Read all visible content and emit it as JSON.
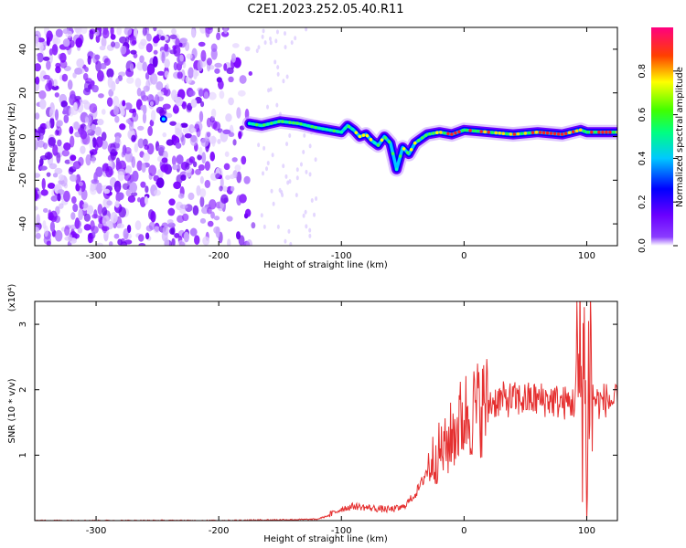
{
  "title": "C2E1.2023.252.05.40.R11",
  "chart_data": [
    {
      "type": "heatmap",
      "xlabel": "Height of straight line (km)",
      "ylabel": "Frequency (Hz)",
      "xlim": [
        -350,
        125
      ],
      "ylim": [
        -50,
        50
      ],
      "xticks": [
        -300,
        -200,
        -100,
        0,
        100
      ],
      "yticks": [
        -40,
        -20,
        0,
        20,
        40
      ],
      "colorbar": {
        "label": "Normalized spectral amplitude",
        "range": [
          0.0,
          1.0
        ],
        "ticks": [
          0.0,
          0.2,
          0.4,
          0.6,
          0.8
        ],
        "colormap": [
          "#ffffff",
          "#7f00ff",
          "#0000ff",
          "#00ffff",
          "#00ff00",
          "#ffff00",
          "#ff0000",
          "#ff0080"
        ]
      },
      "trace": {
        "x": [
          -175,
          -165,
          -150,
          -135,
          -120,
          -110,
          -100,
          -95,
          -90,
          -85,
          -80,
          -75,
          -70,
          -65,
          -60,
          -55,
          -50,
          -45,
          -40,
          -35,
          -30,
          -20,
          -10,
          0,
          20,
          40,
          60,
          80,
          95,
          100,
          110,
          125
        ],
        "y": [
          6,
          5,
          7,
          6,
          4,
          3,
          2,
          5,
          3,
          0,
          1,
          -2,
          -4,
          0,
          -3,
          -15,
          -5,
          -8,
          -3,
          -1,
          1,
          2,
          1,
          3,
          2,
          1,
          2,
          1,
          3,
          2,
          2,
          2
        ]
      },
      "noise_region": [
        -350,
        -170
      ]
    },
    {
      "type": "line",
      "xlabel": "Height of straight line (km)",
      "ylabel": "SNR (10 * v/v)",
      "yscale_label": "(x10⁴)",
      "xlim": [
        -350,
        125
      ],
      "ylim": [
        0,
        3.35
      ],
      "xticks": [
        -300,
        -200,
        -100,
        0,
        100
      ],
      "yticks": [
        1,
        2,
        3
      ],
      "color": "#e53030",
      "series": [
        {
          "x": [
            -350,
            -300,
            -200,
            -120,
            -110,
            -100,
            -90,
            -80,
            -70,
            -60,
            -50,
            -45,
            -40,
            -35,
            -30,
            -25,
            -20,
            -15,
            -10,
            -5,
            0,
            10,
            20,
            30,
            40,
            50,
            60,
            70,
            80,
            90,
            95,
            98,
            100,
            102,
            105,
            110,
            115,
            125
          ],
          "values": [
            0.0,
            0.0,
            0.0,
            0.02,
            0.08,
            0.18,
            0.22,
            0.2,
            0.18,
            0.17,
            0.2,
            0.3,
            0.4,
            0.55,
            0.8,
            0.95,
            1.05,
            1.1,
            1.3,
            1.45,
            1.6,
            1.7,
            1.8,
            1.85,
            1.85,
            1.85,
            1.85,
            1.85,
            1.8,
            1.8,
            2.2,
            2.6,
            0.2,
            2.7,
            1.9,
            1.8,
            1.85,
            1.8
          ]
        }
      ]
    }
  ]
}
